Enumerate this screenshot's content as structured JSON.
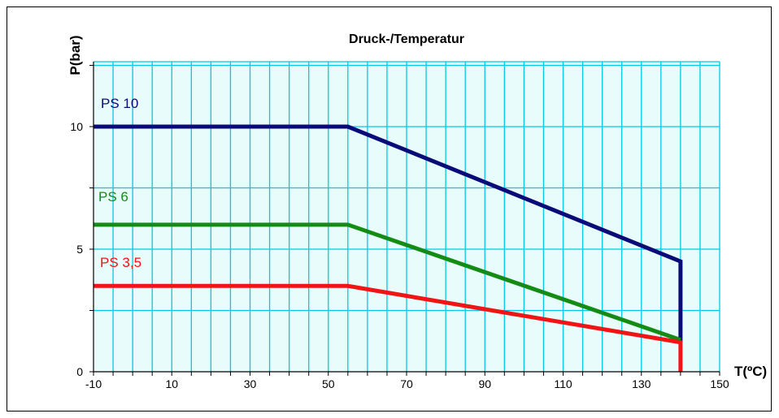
{
  "chart_data": {
    "type": "line",
    "title": "Druck-/Temperatur",
    "ylabel": "P(bar)",
    "xlabel": "T(ºC)",
    "xlim": [
      -10,
      150
    ],
    "ylim": [
      0,
      12.65
    ],
    "x_ticks": [
      -10,
      10,
      30,
      50,
      70,
      90,
      110,
      130,
      150
    ],
    "y_ticks": [
      0,
      5,
      10
    ],
    "x_minor_step": 5,
    "y_minor_step": 2.5,
    "grid": true,
    "plot_background": "#E8FCFC",
    "grid_color": "#00C8E6",
    "series": [
      {
        "name": "PS 10",
        "color": "#0A0A78",
        "points": [
          [
            -10,
            10
          ],
          [
            55,
            10
          ],
          [
            140,
            4.5
          ],
          [
            140,
            1.2
          ]
        ]
      },
      {
        "name": "PS 6",
        "color": "#148C14",
        "points": [
          [
            -10,
            6
          ],
          [
            55,
            6
          ],
          [
            140,
            1.3
          ]
        ]
      },
      {
        "name": "PS 3,5",
        "color": "#F01414",
        "points": [
          [
            -10,
            3.5
          ],
          [
            55,
            3.5
          ],
          [
            140,
            1.2
          ],
          [
            140,
            0
          ]
        ]
      }
    ]
  }
}
